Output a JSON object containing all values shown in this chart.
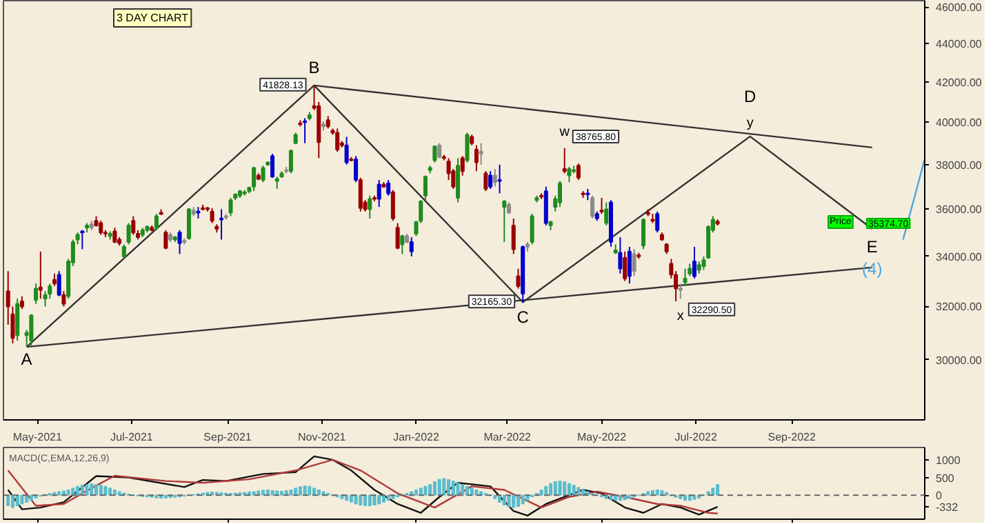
{
  "chart_data": [
    {
      "type": "candlestick",
      "x": [
        "2021-04-12",
        "2021-04-15",
        "2021-04-18",
        "2021-04-21",
        "2021-04-24",
        "2021-04-27",
        "2021-04-30",
        "2021-05-03",
        "2021-05-06",
        "2021-05-09",
        "2021-05-12",
        "2021-05-15",
        "2021-05-18",
        "2021-05-21",
        "2021-05-24",
        "2021-05-27",
        "2021-05-30",
        "2021-06-02",
        "2021-06-05",
        "2021-06-08",
        "2021-06-11",
        "2021-06-14",
        "2021-06-17",
        "2021-06-20",
        "2021-06-23",
        "2021-06-26",
        "2021-06-29",
        "2021-07-02",
        "2021-07-05",
        "2021-07-08",
        "2021-07-11",
        "2021-07-14",
        "2021-07-17",
        "2021-07-20",
        "2021-07-23",
        "2021-07-26",
        "2021-07-29",
        "2021-08-01",
        "2021-08-04",
        "2021-08-07",
        "2021-08-10",
        "2021-08-13",
        "2021-08-16",
        "2021-08-19",
        "2021-08-22",
        "2021-08-25",
        "2021-08-28",
        "2021-08-31",
        "2021-09-03",
        "2021-09-06",
        "2021-09-09",
        "2021-09-12",
        "2021-09-15",
        "2021-09-18",
        "2021-09-21",
        "2021-09-24",
        "2021-09-27",
        "2021-09-30",
        "2021-10-03",
        "2021-10-06",
        "2021-10-09",
        "2021-10-12",
        "2021-10-15",
        "2021-10-18",
        "2021-10-21",
        "2021-10-24",
        "2021-10-27",
        "2021-10-30",
        "2021-11-02",
        "2021-11-05",
        "2021-11-08",
        "2021-11-11",
        "2021-11-14",
        "2021-11-17",
        "2021-11-20",
        "2021-11-23",
        "2021-11-26",
        "2021-11-29",
        "2021-12-02",
        "2021-12-05",
        "2021-12-08",
        "2021-12-11",
        "2021-12-14",
        "2021-12-17",
        "2021-12-20",
        "2021-12-23",
        "2021-12-26",
        "2021-12-29",
        "2022-01-01",
        "2022-01-04",
        "2022-01-07",
        "2022-01-10",
        "2022-01-13",
        "2022-01-16",
        "2022-01-19",
        "2022-01-22",
        "2022-01-25",
        "2022-01-28",
        "2022-01-31",
        "2022-02-03",
        "2022-02-06",
        "2022-02-09",
        "2022-02-12",
        "2022-02-15",
        "2022-02-18",
        "2022-02-21",
        "2022-02-24",
        "2022-02-27",
        "2022-03-02",
        "2022-03-05",
        "2022-03-08",
        "2022-03-11",
        "2022-03-14",
        "2022-03-17",
        "2022-03-20",
        "2022-03-23",
        "2022-03-26",
        "2022-03-29",
        "2022-04-01",
        "2022-04-04",
        "2022-04-07",
        "2022-04-10",
        "2022-04-13",
        "2022-04-16",
        "2022-04-19",
        "2022-04-22",
        "2022-04-25",
        "2022-04-28",
        "2022-05-01",
        "2022-05-04",
        "2022-05-07",
        "2022-05-10",
        "2022-05-13",
        "2022-05-16",
        "2022-05-19",
        "2022-05-22",
        "2022-05-25",
        "2022-05-28",
        "2022-05-31",
        "2022-06-03",
        "2022-06-06",
        "2022-06-09",
        "2022-06-12",
        "2022-06-15",
        "2022-06-18",
        "2022-06-21",
        "2022-06-24",
        "2022-06-27",
        "2022-06-30",
        "2022-07-03",
        "2022-07-06",
        "2022-07-09",
        "2022-07-12",
        "2022-07-15"
      ],
      "ohlc": [
        [
          32600,
          33400,
          31300,
          32000
        ],
        [
          31700,
          32000,
          30600,
          30800
        ],
        [
          30900,
          32300,
          30700,
          32100
        ],
        [
          32200,
          32400,
          31900,
          32000
        ],
        [
          30900,
          31100,
          30470,
          31000
        ],
        [
          30700,
          31700,
          30500,
          31650
        ],
        [
          32250,
          32900,
          32100,
          32700
        ],
        [
          32750,
          34200,
          32300,
          32650
        ],
        [
          32300,
          32600,
          32000,
          32450
        ],
        [
          32500,
          32900,
          32300,
          32800
        ],
        [
          33050,
          33300,
          32800,
          32900
        ],
        [
          33250,
          33400,
          32400,
          32450
        ],
        [
          32450,
          32600,
          32000,
          32100
        ],
        [
          32400,
          33900,
          32300,
          33800
        ],
        [
          33750,
          34700,
          33600,
          34600
        ],
        [
          34700,
          35000,
          34500,
          34900
        ],
        [
          35050,
          35100,
          34300,
          35000
        ],
        [
          35200,
          35400,
          35000,
          35300
        ],
        [
          35350,
          35500,
          35100,
          35200
        ],
        [
          35500,
          35700,
          35250,
          35300
        ],
        [
          35400,
          35500,
          34900,
          35000
        ],
        [
          35000,
          35100,
          34800,
          34950
        ],
        [
          34850,
          35050,
          34700,
          34950
        ],
        [
          35050,
          35200,
          34550,
          34600
        ],
        [
          34700,
          34800,
          34450,
          34550
        ],
        [
          34000,
          34500,
          33900,
          34400
        ],
        [
          34600,
          35400,
          34500,
          35300
        ],
        [
          35500,
          35700,
          34900,
          35000
        ],
        [
          34950,
          35100,
          34700,
          34800
        ],
        [
          34900,
          35200,
          34800,
          35100
        ],
        [
          35100,
          35300,
          35000,
          35250
        ],
        [
          35200,
          35300,
          35050,
          35100
        ],
        [
          35200,
          35800,
          35100,
          35700
        ],
        [
          35850,
          36000,
          35750,
          35800
        ],
        [
          35000,
          35100,
          34300,
          34350
        ],
        [
          34900,
          35000,
          34600,
          34700
        ],
        [
          34700,
          34850,
          34600,
          34800
        ],
        [
          35000,
          35100,
          34100,
          34550
        ],
        [
          34650,
          34750,
          34500,
          34600
        ],
        [
          34750,
          36050,
          34700,
          36000
        ],
        [
          35950,
          36100,
          35700,
          35800
        ],
        [
          35900,
          36100,
          35600,
          35850
        ],
        [
          36050,
          36200,
          35950,
          36000
        ],
        [
          36050,
          36100,
          35900,
          36000
        ],
        [
          35900,
          36050,
          35400,
          35500
        ],
        [
          35250,
          35350,
          35000,
          35150
        ],
        [
          35600,
          36000,
          34700,
          35550
        ],
        [
          35700,
          35800,
          35550,
          35650
        ],
        [
          35850,
          36500,
          35700,
          36400
        ],
        [
          36500,
          36700,
          36400,
          36650
        ],
        [
          36600,
          36850,
          36500,
          36800
        ],
        [
          36700,
          36850,
          36600,
          36750
        ],
        [
          36800,
          37000,
          36700,
          36950
        ],
        [
          37000,
          37900,
          36800,
          37850
        ],
        [
          37500,
          37600,
          37300,
          37350
        ],
        [
          37300,
          37950,
          37200,
          37850
        ],
        [
          38000,
          38150,
          37950,
          38100
        ],
        [
          38400,
          38500,
          37400,
          37450
        ],
        [
          37250,
          37450,
          36900,
          37350
        ],
        [
          37450,
          37700,
          37400,
          37600
        ],
        [
          37750,
          37900,
          37600,
          37700
        ],
        [
          37700,
          38700,
          37600,
          38650
        ],
        [
          39000,
          39500,
          38950,
          39400
        ],
        [
          39950,
          40100,
          39800,
          39900
        ],
        [
          40050,
          40200,
          39000,
          40000
        ],
        [
          40200,
          40500,
          40100,
          40350
        ],
        [
          40800,
          41828.13,
          40600,
          40700
        ],
        [
          40800,
          41000,
          38300,
          39050
        ],
        [
          39900,
          40050,
          39600,
          39800
        ],
        [
          40100,
          40300,
          39700,
          39800
        ],
        [
          39600,
          39700,
          39400,
          39500
        ],
        [
          39500,
          39700,
          38600,
          38700
        ],
        [
          39000,
          39100,
          38800,
          38900
        ],
        [
          38900,
          39300,
          38000,
          38100
        ],
        [
          38250,
          38350,
          38150,
          38200
        ],
        [
          38250,
          38400,
          37200,
          37300
        ],
        [
          37300,
          37400,
          35900,
          36050
        ],
        [
          36300,
          36400,
          35900,
          36000
        ],
        [
          36000,
          36600,
          35600,
          36450
        ],
        [
          36500,
          36600,
          36350,
          36450
        ],
        [
          37100,
          37300,
          36100,
          36450
        ],
        [
          37100,
          37200,
          36950,
          37000
        ],
        [
          37150,
          37300,
          36600,
          36700
        ],
        [
          36750,
          36850,
          35500,
          35600
        ],
        [
          35200,
          35400,
          34300,
          34350
        ],
        [
          34500,
          34900,
          34100,
          34850
        ],
        [
          34850,
          34950,
          34550,
          34600
        ],
        [
          34600,
          34800,
          34000,
          34200
        ],
        [
          34950,
          35500,
          34850,
          35450
        ],
        [
          35500,
          36400,
          35400,
          36350
        ],
        [
          36600,
          37500,
          36400,
          37450
        ],
        [
          37750,
          37950,
          37600,
          37850
        ],
        [
          38200,
          38900,
          38100,
          38850
        ],
        [
          38900,
          39000,
          38300,
          38350
        ],
        [
          38350,
          38450,
          38200,
          38300
        ],
        [
          38150,
          38300,
          37300,
          37600
        ],
        [
          37700,
          37800,
          36900,
          37000
        ],
        [
          36500,
          38300,
          36300,
          37950
        ],
        [
          38300,
          38400,
          37500,
          37700
        ],
        [
          38200,
          39500,
          38100,
          39400
        ],
        [
          39300,
          39400,
          38900,
          39000
        ],
        [
          38700,
          38900,
          37700,
          38100
        ],
        [
          38600,
          39000,
          38000,
          38500
        ],
        [
          37600,
          37700,
          36800,
          36900
        ],
        [
          37500,
          37700,
          36900,
          37000
        ],
        [
          37500,
          37800,
          37000,
          37200
        ],
        [
          37300,
          38000,
          36700,
          37250
        ],
        [
          36100,
          36400,
          34600,
          36350
        ],
        [
          36200,
          36300,
          35800,
          35850
        ],
        [
          35300,
          35600,
          34100,
          34300
        ],
        [
          33200,
          33500,
          32700,
          32800
        ],
        [
          34400,
          34450,
          32165.3,
          32500
        ],
        [
          34500,
          34600,
          34200,
          34400
        ],
        [
          34600,
          35800,
          34500,
          35700
        ],
        [
          36400,
          36600,
          36300,
          36500
        ],
        [
          36600,
          36700,
          36450,
          36550
        ],
        [
          36800,
          37000,
          35300,
          35400
        ],
        [
          35300,
          35500,
          35100,
          35450
        ],
        [
          36100,
          36600,
          35900,
          36450
        ],
        [
          36300,
          37250,
          36100,
          37150
        ],
        [
          37800,
          38765.8,
          37600,
          37700
        ],
        [
          37500,
          37900,
          37200,
          37800
        ],
        [
          37700,
          37950,
          37600,
          37750
        ],
        [
          37950,
          38050,
          37300,
          37400
        ],
        [
          36700,
          36800,
          36500,
          36650
        ],
        [
          36700,
          36900,
          36400,
          36650
        ],
        [
          36500,
          36600,
          35600,
          35700
        ],
        [
          35800,
          35900,
          35500,
          35600
        ],
        [
          35950,
          36500,
          35800,
          35900
        ],
        [
          35400,
          36300,
          35300,
          36000
        ],
        [
          36300,
          36400,
          34400,
          34600
        ],
        [
          34150,
          34500,
          34100,
          34250
        ],
        [
          34150,
          34800,
          33300,
          33500
        ],
        [
          33950,
          34200,
          33000,
          33100
        ],
        [
          34200,
          34400,
          32900,
          33200
        ],
        [
          34100,
          34300,
          33200,
          33400
        ],
        [
          34050,
          34150,
          33900,
          34000
        ],
        [
          34450,
          35600,
          34300,
          35550
        ],
        [
          35800,
          36000,
          35700,
          35850
        ],
        [
          35550,
          35800,
          35400,
          35500
        ],
        [
          35800,
          35900,
          35000,
          35100
        ],
        [
          34900,
          35000,
          34650,
          34700
        ],
        [
          34500,
          34550,
          34100,
          34200
        ],
        [
          33700,
          33900,
          33100,
          33250
        ],
        [
          33250,
          33400,
          32200,
          32700
        ],
        [
          32700,
          32900,
          32290.5,
          32650
        ],
        [
          32950,
          33500,
          32800,
          33100
        ],
        [
          33300,
          33700,
          33200,
          33500
        ],
        [
          33800,
          34400,
          33100,
          33200
        ],
        [
          33450,
          33800,
          33300,
          33650
        ],
        [
          33600,
          34000,
          33450,
          33850
        ],
        [
          33950,
          35300,
          33900,
          35250
        ],
        [
          35100,
          35700,
          35000,
          35550
        ],
        [
          35470,
          35560,
          35300,
          35374.7
        ]
      ],
      "colors": [
        "#990000",
        "#990000",
        "#1e8c1e",
        "#990000",
        "#1e8c1e",
        "#1e8c1e",
        "#1e8c1e",
        "#990000",
        "#1e8c1e",
        "#1e8c1e",
        "#990000",
        "#0000cc",
        "#990000",
        "#1e8c1e",
        "#1e8c1e",
        "#1e8c1e",
        "#0000cc",
        "#1e8c1e",
        "#8c8c8c",
        "#990000",
        "#990000",
        "#990000",
        "#1e8c1e",
        "#990000",
        "#990000",
        "#1e8c1e",
        "#1e8c1e",
        "#990000",
        "#990000",
        "#1e8c1e",
        "#1e8c1e",
        "#990000",
        "#1e8c1e",
        "#990000",
        "#990000",
        "#8c8c8c",
        "#1e8c1e",
        "#0000cc",
        "#8c8c8c",
        "#1e8c1e",
        "#8c8c8c",
        "#0000cc",
        "#990000",
        "#990000",
        "#990000",
        "#990000",
        "#0000cc",
        "#8c8c8c",
        "#1e8c1e",
        "#1e8c1e",
        "#1e8c1e",
        "#1e8c1e",
        "#1e8c1e",
        "#1e8c1e",
        "#990000",
        "#1e8c1e",
        "#1e8c1e",
        "#0000cc",
        "#1e8c1e",
        "#1e8c1e",
        "#8c8c8c",
        "#1e8c1e",
        "#1e8c1e",
        "#990000",
        "#0000cc",
        "#1e8c1e",
        "#990000",
        "#990000",
        "#8c8c8c",
        "#990000",
        "#990000",
        "#990000",
        "#990000",
        "#0000cc",
        "#990000",
        "#0000cc",
        "#990000",
        "#990000",
        "#1e8c1e",
        "#990000",
        "#0000cc",
        "#990000",
        "#0000cc",
        "#990000",
        "#990000",
        "#1e8c1e",
        "#8c8c8c",
        "#0000cc",
        "#1e8c1e",
        "#1e8c1e",
        "#1e8c1e",
        "#1e8c1e",
        "#1e8c1e",
        "#8c8c8c",
        "#990000",
        "#990000",
        "#990000",
        "#1e8c1e",
        "#990000",
        "#1e8c1e",
        "#990000",
        "#990000",
        "#8c8c8c",
        "#990000",
        "#0000cc",
        "#8c8c8c",
        "#0000cc",
        "#1e8c1e",
        "#8c8c8c",
        "#990000",
        "#990000",
        "#0000cc",
        "#8c8c8c",
        "#1e8c1e",
        "#1e8c1e",
        "#990000",
        "#0000cc",
        "#1e8c1e",
        "#1e8c1e",
        "#1e8c1e",
        "#990000",
        "#1e8c1e",
        "#1e8c1e",
        "#990000",
        "#990000",
        "#0000cc",
        "#8c8c8c",
        "#0000cc",
        "#990000",
        "#1e8c1e",
        "#0000cc",
        "#1e8c1e",
        "#0000cc",
        "#990000",
        "#0000cc",
        "#8c8c8c",
        "#990000",
        "#1e8c1e",
        "#990000",
        "#990000",
        "#0000cc",
        "#990000",
        "#990000",
        "#990000",
        "#990000",
        "#8c8c8c",
        "#1e8c1e",
        "#1e8c1e",
        "#0000cc",
        "#1e8c1e",
        "#1e8c1e",
        "#1e8c1e",
        "#1e8c1e",
        "#990000"
      ],
      "series": [
        {
          "type": "line",
          "color": "#333333",
          "x": [
            "2021-04-24",
            "2021-10-27",
            "2022-03-11",
            "2022-08-05",
            "2022-10-23"
          ],
          "values": [
            30470,
            41828.13,
            32165.3,
            39320,
            35150
          ]
        },
        {
          "type": "line",
          "color": "#333333",
          "x": [
            "2021-10-27",
            "2022-10-23"
          ],
          "values": [
            41828.13,
            38800
          ]
        },
        {
          "type": "line",
          "color": "#333333",
          "x": [
            "2021-04-24",
            "2022-10-23"
          ],
          "values": [
            30470,
            33550
          ]
        },
        {
          "type": "line",
          "color": "#4da6e0",
          "x": [
            "2022-11-12",
            "2022-11-26"
          ],
          "values": [
            34700,
            38260
          ]
        }
      ],
      "log": true,
      "xlim": [
        "2021-04-09",
        "2022-11-26"
      ],
      "ylim": [
        27890,
        46350
      ],
      "xticks": [
        {
          "value": "2021-05-01",
          "label": "May-2021"
        },
        {
          "value": "2021-07-01",
          "label": "Jul-2021"
        },
        {
          "value": "2021-09-01",
          "label": "Sep-2021"
        },
        {
          "value": "2021-11-01",
          "label": "Nov-2021"
        },
        {
          "value": "2022-01-01",
          "label": "Jan-2022"
        },
        {
          "value": "2022-03-01",
          "label": "Mar-2022"
        },
        {
          "value": "2022-05-01",
          "label": "May-2022"
        },
        {
          "value": "2022-07-01",
          "label": "Jul-2022"
        },
        {
          "value": "2022-09-01",
          "label": "Sep-2022"
        }
      ],
      "yticks": [
        {
          "value": 30000,
          "label": "30000.00"
        },
        {
          "value": 32000,
          "label": "32000.00"
        },
        {
          "value": 34000,
          "label": "34000.00"
        },
        {
          "value": 36000,
          "label": "36000.00"
        },
        {
          "value": 38000,
          "label": "38000.00"
        },
        {
          "value": 40000,
          "label": "40000.00"
        },
        {
          "value": 42000,
          "label": "42000.00"
        },
        {
          "value": 44000,
          "label": "44000.00"
        },
        {
          "value": 46000,
          "label": "46000.00"
        }
      ],
      "grid": false,
      "annotations": [
        {
          "text": "A",
          "x": "2021-04-24",
          "y": 30470
        },
        {
          "text": "B",
          "x": "2021-10-27",
          "y": 41828.13
        },
        {
          "text": "C",
          "x": "2022-03-11",
          "y": 32165.3
        },
        {
          "text": "D",
          "x": "2022-08-05",
          "y": 39320
        },
        {
          "text": "E",
          "x": "2022-10-23",
          "y": 35150
        },
        {
          "text": "(4)",
          "x": "2022-10-23",
          "y": 35150
        },
        {
          "text": "w",
          "x": "2022-04-07",
          "y": 38765.8
        },
        {
          "text": "x",
          "x": "2022-06-21",
          "y": 32290.5
        },
        {
          "text": "y",
          "x": "2022-08-05",
          "y": 39320
        },
        {
          "text": "41828.13",
          "x": "2021-10-27",
          "y": 41828.13
        },
        {
          "text": "32165.30",
          "x": "2022-03-11",
          "y": 32165.3
        },
        {
          "text": "38765.80",
          "x": "2022-04-07",
          "y": 38765.8
        },
        {
          "text": "32290.50",
          "x": "2022-06-21",
          "y": 32290.5
        },
        "3 DAY CHART",
        "Price",
        "35374.70"
      ]
    },
    {
      "type": "bar",
      "title": "MACD(C,EMA,12,26,9)",
      "x": [
        "2021-04-12",
        "2021-04-15",
        "2021-04-18",
        "2021-04-21",
        "2021-04-24",
        "2021-04-27",
        "2021-04-30",
        "2021-05-03",
        "2021-05-06",
        "2021-05-09",
        "2021-05-12",
        "2021-05-15",
        "2021-05-18",
        "2021-05-21",
        "2021-05-24",
        "2021-05-27",
        "2021-05-30",
        "2021-06-02",
        "2021-06-05",
        "2021-06-08",
        "2021-06-11",
        "2021-06-14",
        "2021-06-17",
        "2021-06-20",
        "2021-06-23",
        "2021-06-26",
        "2021-06-29",
        "2021-07-02",
        "2021-07-05",
        "2021-07-08",
        "2021-07-11",
        "2021-07-14",
        "2021-07-17",
        "2021-07-20",
        "2021-07-23",
        "2021-07-26",
        "2021-07-29",
        "2021-08-01",
        "2021-08-04",
        "2021-08-07",
        "2021-08-10",
        "2021-08-13",
        "2021-08-16",
        "2021-08-19",
        "2021-08-22",
        "2021-08-25",
        "2021-08-28",
        "2021-08-31",
        "2021-09-03",
        "2021-09-06",
        "2021-09-09",
        "2021-09-12",
        "2021-09-15",
        "2021-09-18",
        "2021-09-21",
        "2021-09-24",
        "2021-09-27",
        "2021-09-30",
        "2021-10-03",
        "2021-10-06",
        "2021-10-09",
        "2021-10-12",
        "2021-10-15",
        "2021-10-18",
        "2021-10-21",
        "2021-10-24",
        "2021-10-27",
        "2021-10-30",
        "2021-11-02",
        "2021-11-05",
        "2021-11-08",
        "2021-11-11",
        "2021-11-14",
        "2021-11-17",
        "2021-11-20",
        "2021-11-23",
        "2021-11-26",
        "2021-11-29",
        "2021-12-02",
        "2021-12-05",
        "2021-12-08",
        "2021-12-11",
        "2021-12-14",
        "2021-12-17",
        "2021-12-20",
        "2021-12-23",
        "2021-12-26",
        "2021-12-29",
        "2022-01-01",
        "2022-01-04",
        "2022-01-07",
        "2022-01-10",
        "2022-01-13",
        "2022-01-16",
        "2022-01-19",
        "2022-01-22",
        "2022-01-25",
        "2022-01-28",
        "2022-01-31",
        "2022-02-03",
        "2022-02-06",
        "2022-02-09",
        "2022-02-12",
        "2022-02-15",
        "2022-02-18",
        "2022-02-21",
        "2022-02-24",
        "2022-02-27",
        "2022-03-02",
        "2022-03-05",
        "2022-03-08",
        "2022-03-11",
        "2022-03-14",
        "2022-03-17",
        "2022-03-20",
        "2022-03-23",
        "2022-03-26",
        "2022-03-29",
        "2022-04-01",
        "2022-04-04",
        "2022-04-07",
        "2022-04-10",
        "2022-04-13",
        "2022-04-16",
        "2022-04-19",
        "2022-04-22",
        "2022-04-25",
        "2022-04-28",
        "2022-05-01",
        "2022-05-04",
        "2022-05-07",
        "2022-05-10",
        "2022-05-13",
        "2022-05-16",
        "2022-05-19",
        "2022-05-22",
        "2022-05-25",
        "2022-05-28",
        "2022-05-31",
        "2022-06-03",
        "2022-06-06",
        "2022-06-09",
        "2022-06-12",
        "2022-06-15",
        "2022-06-18",
        "2022-06-21",
        "2022-06-24",
        "2022-06-27",
        "2022-06-30",
        "2022-07-03",
        "2022-07-06",
        "2022-07-09",
        "2022-07-12",
        "2022-07-15"
      ],
      "series": [
        {
          "type": "bar",
          "color": "#5bbccc",
          "values": [
            -300,
            -350,
            -300,
            -250,
            -200,
            -150,
            -80,
            -30,
            20,
            50,
            80,
            100,
            120,
            150,
            200,
            250,
            280,
            300,
            320,
            300,
            280,
            250,
            200,
            150,
            100,
            60,
            30,
            0,
            -20,
            -40,
            -50,
            -60,
            -80,
            -90,
            -80,
            -70,
            -60,
            -50,
            -30,
            null,
            20,
            40,
            60,
            80,
            90,
            80,
            70,
            60,
            50,
            60,
            70,
            80,
            90,
            100,
            120,
            140,
            150,
            130,
            120,
            110,
            130,
            150,
            200,
            240,
            260,
            250,
            200,
            150,
            100,
            50,
            0,
            -50,
            -100,
            -150,
            -200,
            -250,
            -280,
            -300,
            -300,
            -280,
            -250,
            -200,
            -150,
            -100,
            -50,
            0,
            50,
            100,
            150,
            200,
            250,
            300,
            380,
            450,
            470,
            440,
            400,
            350,
            300,
            250,
            200,
            150,
            100,
            50,
            0,
            -100,
            -200,
            -280,
            -330,
            -350,
            -320,
            -250,
            -150,
            -50,
            50,
            150,
            250,
            330,
            380,
            400,
            380,
            330,
            280,
            220,
            160,
            100,
            50,
            0,
            -50,
            -100,
            -130,
            -150,
            -150,
            -130,
            -100,
            -50,
            0,
            50,
            100,
            130,
            150,
            130,
            80,
            0,
            -60,
            -100,
            -150,
            -150,
            -120,
            -80,
            0,
            100,
            200,
            300
          ]
        },
        {
          "type": "line",
          "color": "#111111",
          "x": [
            "2021-04-12",
            "2021-04-21",
            "2021-05-03",
            "2021-05-18",
            "2021-06-08",
            "2021-06-29",
            "2021-08-04",
            "2021-08-16",
            "2021-08-31",
            "2021-09-24",
            "2021-10-15",
            "2021-10-27",
            "2021-11-08",
            "2021-11-20",
            "2021-12-05",
            "2021-12-20",
            "2022-01-04",
            "2022-01-16",
            "2022-01-28",
            "2022-02-18",
            "2022-03-05",
            "2022-03-14",
            "2022-03-26",
            "2022-04-19",
            "2022-05-01",
            "2022-05-16",
            "2022-05-28",
            "2022-06-09",
            "2022-06-21",
            "2022-07-03",
            "2022-07-15"
          ],
          "values": [
            150,
            -400,
            -350,
            -200,
            540,
            500,
            230,
            430,
            400,
            600,
            650,
            1100,
            1000,
            700,
            150,
            -250,
            -500,
            -50,
            350,
            250,
            -450,
            -580,
            -250,
            150,
            50,
            -350,
            -500,
            -250,
            -350,
            -550,
            -332
          ]
        },
        {
          "type": "line",
          "color": "#b03a3a",
          "x": [
            "2021-04-12",
            "2021-04-30",
            "2021-05-18",
            "2021-06-05",
            "2021-06-20",
            "2021-07-23",
            "2021-08-16",
            "2021-09-15",
            "2021-10-15",
            "2021-11-08",
            "2021-11-26",
            "2021-12-20",
            "2022-01-13",
            "2022-02-06",
            "2022-02-27",
            "2022-03-23",
            "2022-04-10",
            "2022-04-28",
            "2022-05-16",
            "2022-06-06",
            "2022-06-21",
            "2022-07-09",
            "2022-07-15"
          ],
          "values": [
            700,
            -300,
            -250,
            200,
            550,
            400,
            350,
            450,
            700,
            1000,
            700,
            50,
            -350,
            250,
            150,
            -350,
            -50,
            100,
            -50,
            -250,
            -300,
            -500,
            -520
          ]
        }
      ],
      "xlim": [
        "2021-04-09",
        "2022-11-26"
      ],
      "ylim": [
        -680,
        1350
      ],
      "yticks": [
        1000,
        500,
        0,
        -332
      ],
      "tick_labels": "y",
      "grid": false,
      "ref_lines": [
        {
          "axis": "y",
          "value": 0,
          "color": "#666666",
          "line_style": "dashed"
        }
      ]
    }
  ]
}
